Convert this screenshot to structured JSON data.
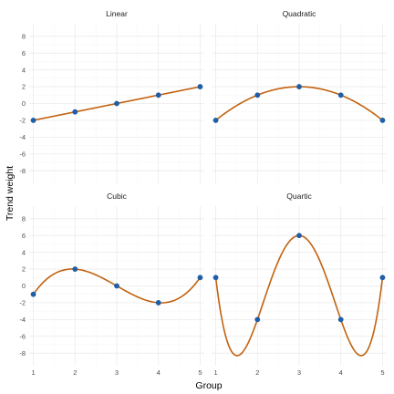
{
  "chart_data": {
    "type": "line",
    "xlabel": "Group",
    "ylabel": "Trend weight",
    "x_ticks": [
      1,
      2,
      3,
      4,
      5
    ],
    "y_ticks": [
      -8,
      -6,
      -4,
      -2,
      0,
      2,
      4,
      6,
      8
    ],
    "xlim": [
      0.9,
      5.1
    ],
    "ylim": [
      -9.5,
      9.5
    ],
    "grid": true,
    "colors": {
      "line": "#c2620f",
      "point": "#1f5fa8"
    },
    "panels": [
      {
        "title": "Linear",
        "x": [
          1,
          2,
          3,
          4,
          5
        ],
        "y": [
          -2,
          -1,
          0,
          1,
          2
        ]
      },
      {
        "title": "Quadratic",
        "x": [
          1,
          2,
          3,
          4,
          5
        ],
        "y": [
          -2,
          1,
          2,
          1,
          -2
        ]
      },
      {
        "title": "Cubic",
        "x": [
          1,
          2,
          3,
          4,
          5
        ],
        "y": [
          -1,
          2,
          0,
          -2,
          1
        ]
      },
      {
        "title": "Quartic",
        "x": [
          1,
          2,
          3,
          4,
          5
        ],
        "y": [
          1,
          -4,
          6,
          -4,
          1
        ]
      }
    ]
  }
}
